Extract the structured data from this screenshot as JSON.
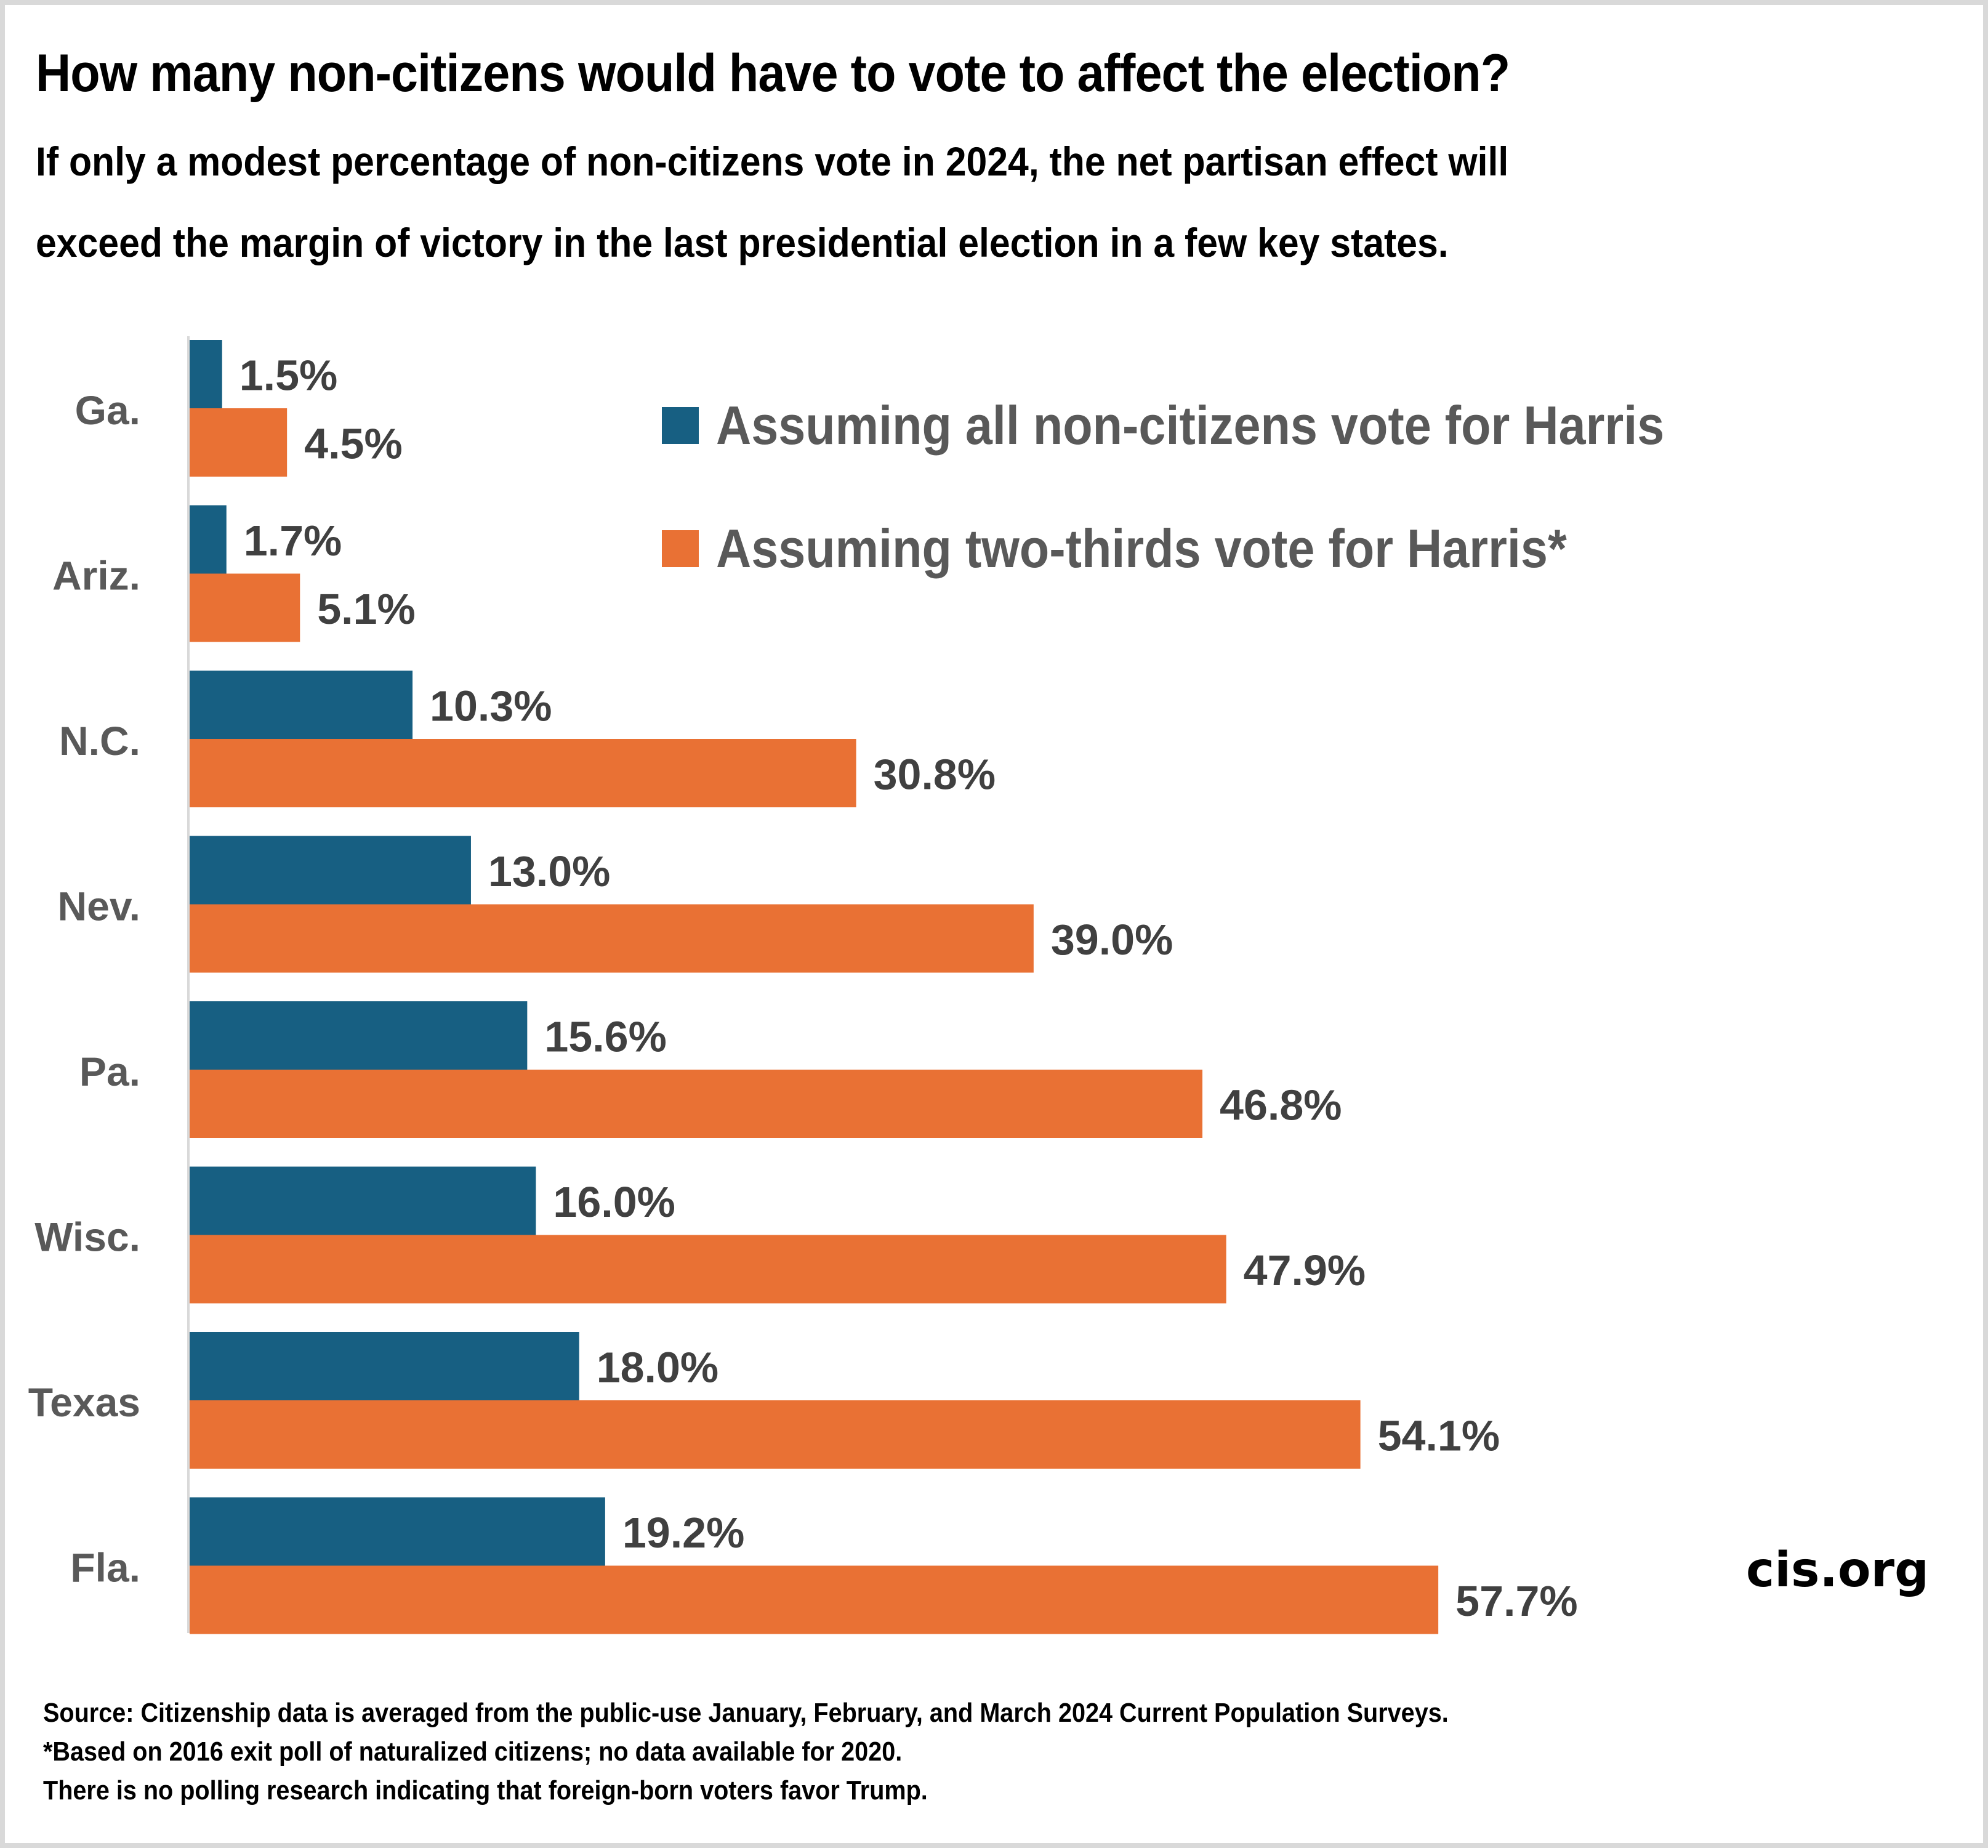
{
  "header": {
    "title": "How many non-citizens would have to vote to affect the election?",
    "subtitle_line1": "If only a modest percentage of non-citizens vote in 2024, the net partisan effect will",
    "subtitle_line2": "exceed the margin of victory in the last presidential election in a few key states."
  },
  "brand": "cis.org",
  "notes": [
    "Source: Citizenship data is averaged from the public-use January, February, and March 2024 Current Population Surveys.",
    "*Based on 2016 exit poll of naturalized citizens; no data available for 2020.",
    "There is no polling research indicating that foreign-born voters favor Trump."
  ],
  "colors": {
    "series_all": "#175f82",
    "series_two_thirds": "#e97134",
    "category_label": "#595959",
    "value_label": "#404040",
    "axis": "#d9d9d9"
  },
  "chart_data": {
    "type": "bar",
    "orientation": "horizontal",
    "title": "How many non-citizens would have to vote to affect the election?",
    "subtitle": "If only a modest percentage of non-citizens vote in 2024, the net partisan effect will exceed the margin of victory in the last presidential election in a few key states.",
    "xlabel": "",
    "ylabel": "",
    "xlim": [
      0,
      60
    ],
    "grid": false,
    "legend_position": "top-right",
    "value_format": "percent_1dp",
    "categories": [
      "Ga.",
      "Ariz.",
      "N.C.",
      "Nev.",
      "Pa.",
      "Wisc.",
      "Texas",
      "Fla."
    ],
    "series": [
      {
        "name": "Assuming all non-citizens vote for Harris",
        "color": "#175f82",
        "values": [
          1.5,
          1.7,
          10.3,
          13.0,
          15.6,
          16.0,
          18.0,
          19.2
        ],
        "labels": [
          "1.5%",
          "1.7%",
          "10.3%",
          "13.0%",
          "15.6%",
          "16.0%",
          "18.0%",
          "19.2%"
        ]
      },
      {
        "name": "Assuming two-thirds vote for Harris*",
        "color": "#e97134",
        "values": [
          4.5,
          5.1,
          30.8,
          39.0,
          46.8,
          47.9,
          54.1,
          57.7
        ],
        "labels": [
          "4.5%",
          "5.1%",
          "30.8%",
          "39.0%",
          "46.8%",
          "47.9%",
          "54.1%",
          "57.7%"
        ]
      }
    ]
  }
}
